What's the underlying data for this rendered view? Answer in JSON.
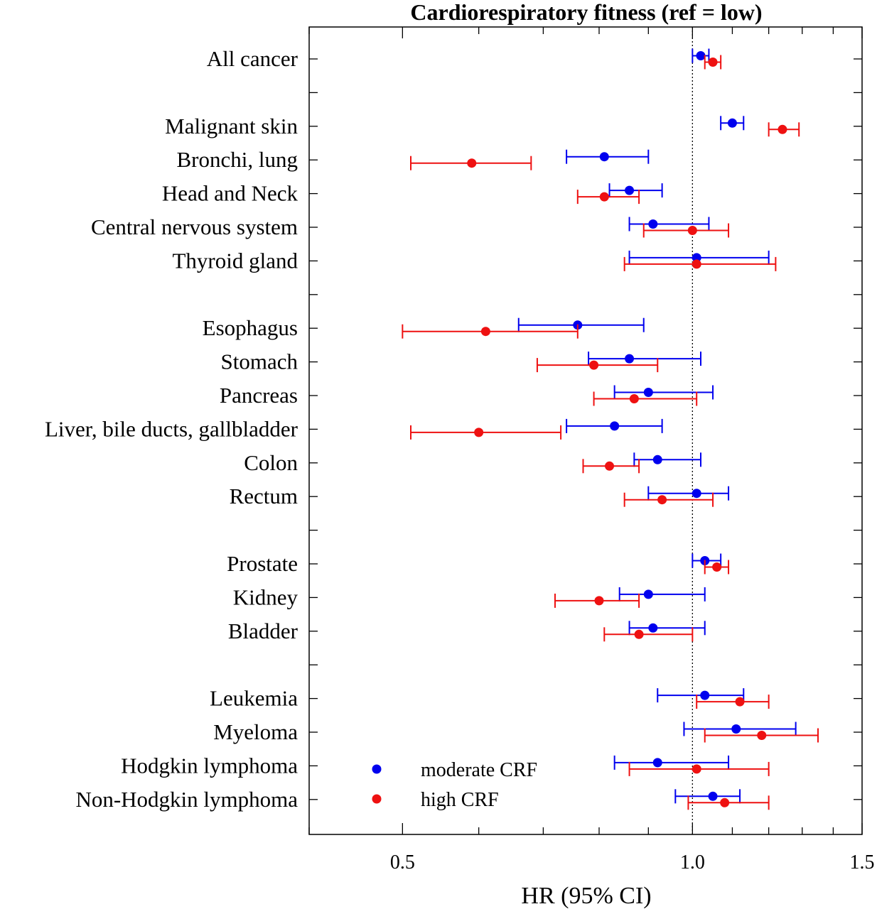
{
  "chart_data": {
    "type": "scatter",
    "title": "Cardiorespiratory fitness (ref = low)",
    "xlabel": "HR (95% CI)",
    "ylabel": "",
    "xscale": "log",
    "xlim": [
      0.4,
      1.5
    ],
    "xticks": [
      0.5,
      1.0,
      1.5
    ],
    "xtick_labels": [
      "0.5",
      "1.0",
      "1.5"
    ],
    "reference_line": 1.0,
    "legend_position": "bottom-left",
    "colors": {
      "moderate": "#0000ee",
      "high": "#ee1111"
    },
    "rows": [
      {
        "label": "All cancer"
      },
      {
        "label": ""
      },
      {
        "label": "Malignant skin"
      },
      {
        "label": "Bronchi, lung"
      },
      {
        "label": "Head and Neck"
      },
      {
        "label": "Central nervous system"
      },
      {
        "label": "Thyroid gland"
      },
      {
        "label": ""
      },
      {
        "label": "Esophagus"
      },
      {
        "label": "Stomach"
      },
      {
        "label": "Pancreas"
      },
      {
        "label": "Liver, bile ducts, gallbladder"
      },
      {
        "label": "Colon"
      },
      {
        "label": "Rectum"
      },
      {
        "label": ""
      },
      {
        "label": "Prostate"
      },
      {
        "label": "Kidney"
      },
      {
        "label": "Bladder"
      },
      {
        "label": ""
      },
      {
        "label": "Leukemia"
      },
      {
        "label": "Myeloma"
      },
      {
        "label": "Hodgkin lymphoma"
      },
      {
        "label": "Non-Hodgkin lymphoma"
      }
    ],
    "series": [
      {
        "name": "moderate CRF",
        "key": "moderate",
        "points": [
          {
            "row": 0,
            "hr": 1.02,
            "lo": 1.0,
            "hi": 1.04
          },
          {
            "row": 2,
            "hr": 1.1,
            "lo": 1.07,
            "hi": 1.13
          },
          {
            "row": 3,
            "hr": 0.81,
            "lo": 0.74,
            "hi": 0.9
          },
          {
            "row": 4,
            "hr": 0.86,
            "lo": 0.82,
            "hi": 0.93
          },
          {
            "row": 5,
            "hr": 0.91,
            "lo": 0.86,
            "hi": 1.04
          },
          {
            "row": 6,
            "hr": 1.01,
            "lo": 0.86,
            "hi": 1.2
          },
          {
            "row": 8,
            "hr": 0.76,
            "lo": 0.66,
            "hi": 0.89
          },
          {
            "row": 9,
            "hr": 0.86,
            "lo": 0.78,
            "hi": 1.02
          },
          {
            "row": 10,
            "hr": 0.9,
            "lo": 0.83,
            "hi": 1.05
          },
          {
            "row": 11,
            "hr": 0.83,
            "lo": 0.74,
            "hi": 0.93
          },
          {
            "row": 12,
            "hr": 0.92,
            "lo": 0.87,
            "hi": 1.02
          },
          {
            "row": 13,
            "hr": 1.01,
            "lo": 0.9,
            "hi": 1.09
          },
          {
            "row": 15,
            "hr": 1.03,
            "lo": 1.0,
            "hi": 1.07
          },
          {
            "row": 16,
            "hr": 0.9,
            "lo": 0.84,
            "hi": 1.03
          },
          {
            "row": 17,
            "hr": 0.91,
            "lo": 0.86,
            "hi": 1.03
          },
          {
            "row": 19,
            "hr": 1.03,
            "lo": 0.92,
            "hi": 1.13
          },
          {
            "row": 20,
            "hr": 1.11,
            "lo": 0.98,
            "hi": 1.28
          },
          {
            "row": 21,
            "hr": 0.92,
            "lo": 0.83,
            "hi": 1.09
          },
          {
            "row": 22,
            "hr": 1.05,
            "lo": 0.96,
            "hi": 1.12
          }
        ]
      },
      {
        "name": "high CRF",
        "key": "high",
        "points": [
          {
            "row": 0,
            "hr": 1.05,
            "lo": 1.03,
            "hi": 1.07
          },
          {
            "row": 2,
            "hr": 1.24,
            "lo": 1.2,
            "hi": 1.29
          },
          {
            "row": 3,
            "hr": 0.59,
            "lo": 0.51,
            "hi": 0.68
          },
          {
            "row": 4,
            "hr": 0.81,
            "lo": 0.76,
            "hi": 0.88
          },
          {
            "row": 5,
            "hr": 1.0,
            "lo": 0.89,
            "hi": 1.09
          },
          {
            "row": 6,
            "hr": 1.01,
            "lo": 0.85,
            "hi": 1.22
          },
          {
            "row": 8,
            "hr": 0.61,
            "lo": 0.5,
            "hi": 0.76
          },
          {
            "row": 9,
            "hr": 0.79,
            "lo": 0.69,
            "hi": 0.92
          },
          {
            "row": 10,
            "hr": 0.87,
            "lo": 0.79,
            "hi": 1.01
          },
          {
            "row": 11,
            "hr": 0.6,
            "lo": 0.51,
            "hi": 0.73
          },
          {
            "row": 12,
            "hr": 0.82,
            "lo": 0.77,
            "hi": 0.88
          },
          {
            "row": 13,
            "hr": 0.93,
            "lo": 0.85,
            "hi": 1.05
          },
          {
            "row": 15,
            "hr": 1.06,
            "lo": 1.03,
            "hi": 1.09
          },
          {
            "row": 16,
            "hr": 0.8,
            "lo": 0.72,
            "hi": 0.88
          },
          {
            "row": 17,
            "hr": 0.88,
            "lo": 0.81,
            "hi": 1.0
          },
          {
            "row": 19,
            "hr": 1.12,
            "lo": 1.01,
            "hi": 1.2
          },
          {
            "row": 20,
            "hr": 1.18,
            "lo": 1.03,
            "hi": 1.35
          },
          {
            "row": 21,
            "hr": 1.01,
            "lo": 0.86,
            "hi": 1.2
          },
          {
            "row": 22,
            "hr": 1.08,
            "lo": 0.99,
            "hi": 1.2
          }
        ]
      }
    ]
  }
}
